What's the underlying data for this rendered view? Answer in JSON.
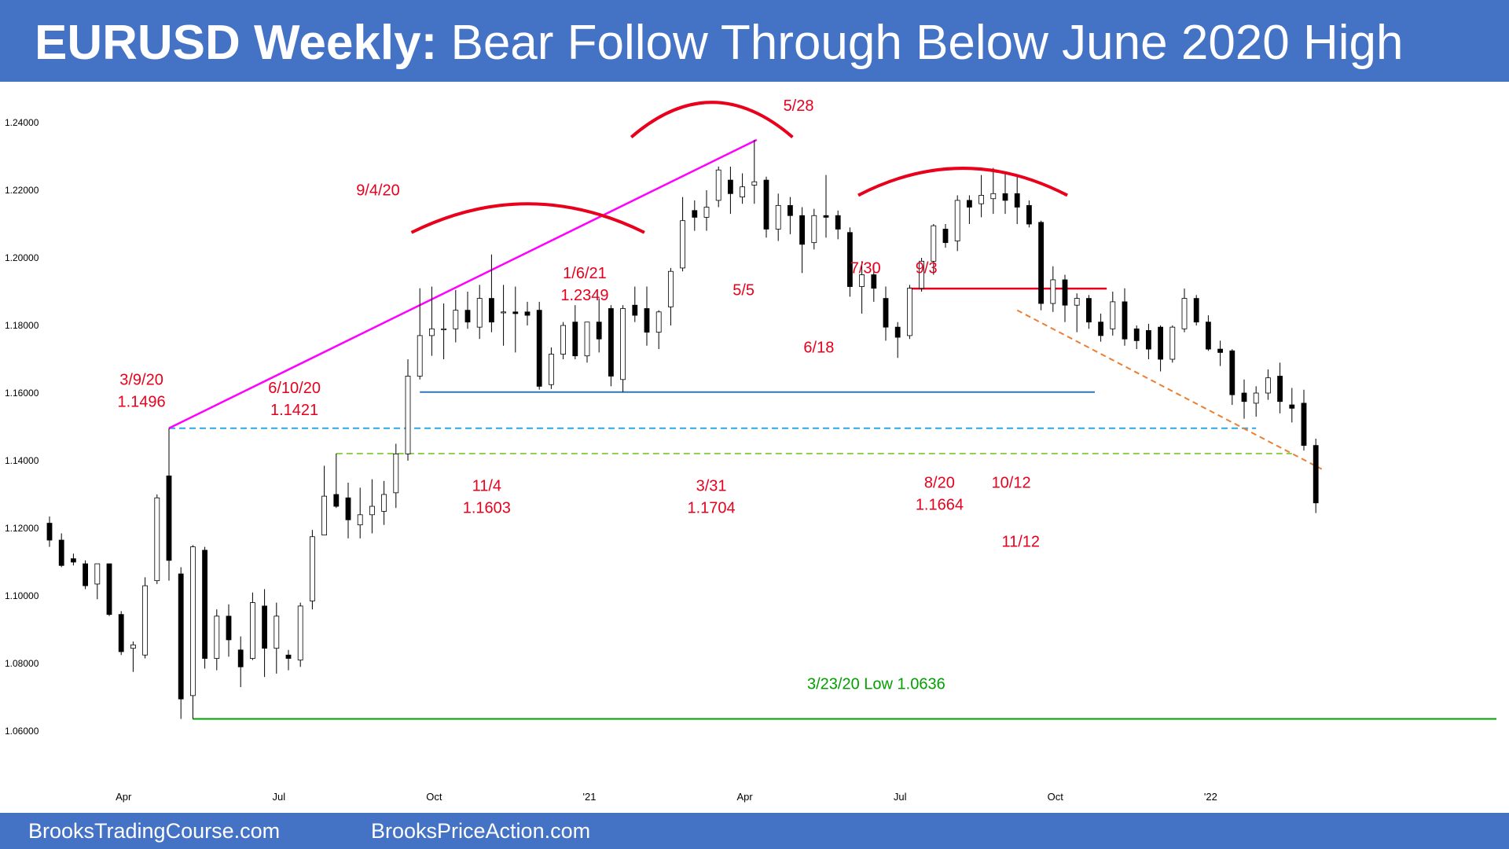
{
  "header": {
    "title_bold": "EURUSD Weekly:",
    "title_rest": "Bear Follow Through Below June 2020 High"
  },
  "footer": {
    "left": "BrooksTradingCourse.com",
    "right": "BrooksPriceAction.com"
  },
  "chart_data": {
    "type": "candlestick",
    "title": "EURUSD Weekly: Bear Follow Through Below June 2020 High",
    "timeframe": "weekly",
    "ylim": [
      1.052,
      1.245
    ],
    "yticks": [
      {
        "value": 1.24,
        "label": "1.24000"
      },
      {
        "value": 1.22,
        "label": "1.22000"
      },
      {
        "value": 1.2,
        "label": "1.20000"
      },
      {
        "value": 1.18,
        "label": "1.18000"
      },
      {
        "value": 1.16,
        "label": "1.16000"
      },
      {
        "value": 1.14,
        "label": "1.14000"
      },
      {
        "value": 1.12,
        "label": "1.12000"
      },
      {
        "value": 1.1,
        "label": "1.10000"
      },
      {
        "value": 1.08,
        "label": "1.08000"
      },
      {
        "value": 1.06,
        "label": "1.06000"
      }
    ],
    "xticks": [
      {
        "index": 6,
        "label": "Apr"
      },
      {
        "index": 19,
        "label": "Jul"
      },
      {
        "index": 32,
        "label": "Oct"
      },
      {
        "index": 45,
        "label": "'21"
      },
      {
        "index": 58,
        "label": "Apr"
      },
      {
        "index": 71,
        "label": "Jul"
      },
      {
        "index": 84,
        "label": "Oct"
      },
      {
        "index": 97,
        "label": "'22"
      }
    ],
    "grid": false,
    "candles": [
      {
        "o": 1.1215,
        "h": 1.1235,
        "l": 1.1145,
        "c": 1.1165
      },
      {
        "o": 1.1165,
        "h": 1.1185,
        "l": 1.1085,
        "c": 1.109
      },
      {
        "o": 1.111,
        "h": 1.1125,
        "l": 1.109,
        "c": 1.11
      },
      {
        "o": 1.1095,
        "h": 1.1105,
        "l": 1.102,
        "c": 1.103
      },
      {
        "o": 1.1035,
        "h": 1.1095,
        "l": 1.099,
        "c": 1.1095
      },
      {
        "o": 1.1095,
        "h": 1.1095,
        "l": 1.094,
        "c": 1.0945
      },
      {
        "o": 1.0945,
        "h": 1.0955,
        "l": 1.0825,
        "c": 1.0835
      },
      {
        "o": 1.0845,
        "h": 1.0865,
        "l": 1.0775,
        "c": 1.0855
      },
      {
        "o": 1.0825,
        "h": 1.1055,
        "l": 1.0815,
        "c": 1.103
      },
      {
        "o": 1.1045,
        "h": 1.13,
        "l": 1.1035,
        "c": 1.129
      },
      {
        "o": 1.1355,
        "h": 1.1496,
        "l": 1.1045,
        "c": 1.1105
      },
      {
        "o": 1.1065,
        "h": 1.1085,
        "l": 1.0636,
        "c": 1.0695
      },
      {
        "o": 1.0705,
        "h": 1.115,
        "l": 1.0636,
        "c": 1.1145
      },
      {
        "o": 1.1135,
        "h": 1.1145,
        "l": 1.0785,
        "c": 1.0815
      },
      {
        "o": 1.0815,
        "h": 1.096,
        "l": 1.078,
        "c": 1.094
      },
      {
        "o": 1.094,
        "h": 1.0975,
        "l": 1.082,
        "c": 1.087
      },
      {
        "o": 1.084,
        "h": 1.088,
        "l": 1.073,
        "c": 1.079
      },
      {
        "o": 1.0815,
        "h": 1.101,
        "l": 1.081,
        "c": 1.098
      },
      {
        "o": 1.097,
        "h": 1.102,
        "l": 1.076,
        "c": 1.0845
      },
      {
        "o": 1.0845,
        "h": 1.098,
        "l": 1.077,
        "c": 1.094
      },
      {
        "o": 1.0825,
        "h": 1.084,
        "l": 1.078,
        "c": 1.0815
      },
      {
        "o": 1.081,
        "h": 1.098,
        "l": 1.079,
        "c": 1.097
      },
      {
        "o": 1.0985,
        "h": 1.1195,
        "l": 1.096,
        "c": 1.1175
      },
      {
        "o": 1.118,
        "h": 1.1385,
        "l": 1.118,
        "c": 1.1295
      },
      {
        "o": 1.13,
        "h": 1.1421,
        "l": 1.126,
        "c": 1.1265
      },
      {
        "o": 1.129,
        "h": 1.1335,
        "l": 1.117,
        "c": 1.1225
      },
      {
        "o": 1.121,
        "h": 1.132,
        "l": 1.117,
        "c": 1.124
      },
      {
        "o": 1.124,
        "h": 1.1345,
        "l": 1.1185,
        "c": 1.1265
      },
      {
        "o": 1.125,
        "h": 1.134,
        "l": 1.121,
        "c": 1.13
      },
      {
        "o": 1.1305,
        "h": 1.145,
        "l": 1.126,
        "c": 1.142
      },
      {
        "o": 1.142,
        "h": 1.17,
        "l": 1.14,
        "c": 1.165
      },
      {
        "o": 1.165,
        "h": 1.191,
        "l": 1.164,
        "c": 1.177
      },
      {
        "o": 1.177,
        "h": 1.1915,
        "l": 1.171,
        "c": 1.179
      },
      {
        "o": 1.179,
        "h": 1.1865,
        "l": 1.17,
        "c": 1.179
      },
      {
        "o": 1.179,
        "h": 1.1905,
        "l": 1.175,
        "c": 1.1845
      },
      {
        "o": 1.1845,
        "h": 1.19,
        "l": 1.179,
        "c": 1.181
      },
      {
        "o": 1.1795,
        "h": 1.192,
        "l": 1.176,
        "c": 1.188
      },
      {
        "o": 1.188,
        "h": 1.201,
        "l": 1.178,
        "c": 1.181
      },
      {
        "o": 1.184,
        "h": 1.192,
        "l": 1.174,
        "c": 1.184
      },
      {
        "o": 1.184,
        "h": 1.1915,
        "l": 1.172,
        "c": 1.1835
      },
      {
        "o": 1.184,
        "h": 1.187,
        "l": 1.18,
        "c": 1.183
      },
      {
        "o": 1.1845,
        "h": 1.187,
        "l": 1.161,
        "c": 1.162
      },
      {
        "o": 1.1625,
        "h": 1.1735,
        "l": 1.1612,
        "c": 1.1715
      },
      {
        "o": 1.1715,
        "h": 1.181,
        "l": 1.17,
        "c": 1.18
      },
      {
        "o": 1.181,
        "h": 1.186,
        "l": 1.17,
        "c": 1.171
      },
      {
        "o": 1.171,
        "h": 1.181,
        "l": 1.169,
        "c": 1.181
      },
      {
        "o": 1.181,
        "h": 1.188,
        "l": 1.172,
        "c": 1.176
      },
      {
        "o": 1.185,
        "h": 1.186,
        "l": 1.162,
        "c": 1.165
      },
      {
        "o": 1.164,
        "h": 1.186,
        "l": 1.1603,
        "c": 1.185
      },
      {
        "o": 1.186,
        "h": 1.1915,
        "l": 1.181,
        "c": 1.183
      },
      {
        "o": 1.185,
        "h": 1.1915,
        "l": 1.174,
        "c": 1.178
      },
      {
        "o": 1.178,
        "h": 1.1845,
        "l": 1.173,
        "c": 1.184
      },
      {
        "o": 1.1855,
        "h": 1.197,
        "l": 1.18,
        "c": 1.196
      },
      {
        "o": 1.197,
        "h": 1.218,
        "l": 1.196,
        "c": 1.211
      },
      {
        "o": 1.214,
        "h": 1.217,
        "l": 1.208,
        "c": 1.212
      },
      {
        "o": 1.212,
        "h": 1.22,
        "l": 1.208,
        "c": 1.215
      },
      {
        "o": 1.217,
        "h": 1.227,
        "l": 1.215,
        "c": 1.226
      },
      {
        "o": 1.223,
        "h": 1.227,
        "l": 1.213,
        "c": 1.219
      },
      {
        "o": 1.218,
        "h": 1.225,
        "l": 1.216,
        "c": 1.221
      },
      {
        "o": 1.2215,
        "h": 1.2349,
        "l": 1.216,
        "c": 1.2225
      },
      {
        "o": 1.223,
        "h": 1.224,
        "l": 1.206,
        "c": 1.2085
      },
      {
        "o": 1.2085,
        "h": 1.219,
        "l": 1.205,
        "c": 1.2155
      },
      {
        "o": 1.2155,
        "h": 1.218,
        "l": 1.207,
        "c": 1.2125
      },
      {
        "o": 1.2125,
        "h": 1.215,
        "l": 1.1955,
        "c": 1.204
      },
      {
        "o": 1.2045,
        "h": 1.2145,
        "l": 1.2025,
        "c": 1.2125
      },
      {
        "o": 1.2125,
        "h": 1.2245,
        "l": 1.206,
        "c": 1.212
      },
      {
        "o": 1.2125,
        "h": 1.214,
        "l": 1.2055,
        "c": 1.2085
      },
      {
        "o": 1.2075,
        "h": 1.209,
        "l": 1.1885,
        "c": 1.1915
      },
      {
        "o": 1.1915,
        "h": 1.199,
        "l": 1.1835,
        "c": 1.195
      },
      {
        "o": 1.195,
        "h": 1.198,
        "l": 1.187,
        "c": 1.191
      },
      {
        "o": 1.188,
        "h": 1.1915,
        "l": 1.1755,
        "c": 1.1795
      },
      {
        "o": 1.1795,
        "h": 1.181,
        "l": 1.1704,
        "c": 1.1765
      },
      {
        "o": 1.177,
        "h": 1.192,
        "l": 1.176,
        "c": 1.191
      },
      {
        "o": 1.191,
        "h": 1.2,
        "l": 1.19,
        "c": 1.199
      },
      {
        "o": 1.199,
        "h": 1.21,
        "l": 1.195,
        "c": 1.2095
      },
      {
        "o": 1.2085,
        "h": 1.21,
        "l": 1.203,
        "c": 1.2045
      },
      {
        "o": 1.205,
        "h": 1.2185,
        "l": 1.202,
        "c": 1.217
      },
      {
        "o": 1.217,
        "h": 1.2185,
        "l": 1.21,
        "c": 1.215
      },
      {
        "o": 1.216,
        "h": 1.2245,
        "l": 1.212,
        "c": 1.2185
      },
      {
        "o": 1.2175,
        "h": 1.2266,
        "l": 1.213,
        "c": 1.219
      },
      {
        "o": 1.219,
        "h": 1.2255,
        "l": 1.213,
        "c": 1.217
      },
      {
        "o": 1.219,
        "h": 1.224,
        "l": 1.21,
        "c": 1.215
      },
      {
        "o": 1.2155,
        "h": 1.217,
        "l": 1.209,
        "c": 1.21
      },
      {
        "o": 1.2105,
        "h": 1.211,
        "l": 1.1845,
        "c": 1.1865
      },
      {
        "o": 1.1865,
        "h": 1.1975,
        "l": 1.184,
        "c": 1.1935
      },
      {
        "o": 1.1935,
        "h": 1.195,
        "l": 1.181,
        "c": 1.186
      },
      {
        "o": 1.186,
        "h": 1.1895,
        "l": 1.178,
        "c": 1.188
      },
      {
        "o": 1.188,
        "h": 1.189,
        "l": 1.179,
        "c": 1.181
      },
      {
        "o": 1.181,
        "h": 1.1835,
        "l": 1.1752,
        "c": 1.177
      },
      {
        "o": 1.179,
        "h": 1.19,
        "l": 1.177,
        "c": 1.187
      },
      {
        "o": 1.187,
        "h": 1.191,
        "l": 1.174,
        "c": 1.176
      },
      {
        "o": 1.179,
        "h": 1.18,
        "l": 1.173,
        "c": 1.1755
      },
      {
        "o": 1.1785,
        "h": 1.1805,
        "l": 1.17,
        "c": 1.173
      },
      {
        "o": 1.1795,
        "h": 1.18,
        "l": 1.1664,
        "c": 1.17
      },
      {
        "o": 1.17,
        "h": 1.18,
        "l": 1.169,
        "c": 1.1795
      },
      {
        "o": 1.179,
        "h": 1.1909,
        "l": 1.178,
        "c": 1.188
      },
      {
        "o": 1.188,
        "h": 1.189,
        "l": 1.18,
        "c": 1.181
      },
      {
        "o": 1.181,
        "h": 1.183,
        "l": 1.1725,
        "c": 1.173
      },
      {
        "o": 1.173,
        "h": 1.1755,
        "l": 1.168,
        "c": 1.172
      },
      {
        "o": 1.1725,
        "h": 1.173,
        "l": 1.1565,
        "c": 1.1595
      },
      {
        "o": 1.16,
        "h": 1.164,
        "l": 1.1524,
        "c": 1.1575
      },
      {
        "o": 1.157,
        "h": 1.162,
        "l": 1.153,
        "c": 1.16
      },
      {
        "o": 1.16,
        "h": 1.167,
        "l": 1.158,
        "c": 1.1645
      },
      {
        "o": 1.165,
        "h": 1.169,
        "l": 1.154,
        "c": 1.1575
      },
      {
        "o": 1.1565,
        "h": 1.1615,
        "l": 1.1513,
        "c": 1.1555
      },
      {
        "o": 1.157,
        "h": 1.161,
        "l": 1.143,
        "c": 1.1445
      },
      {
        "o": 1.1445,
        "h": 1.1465,
        "l": 1.1245,
        "c": 1.1275
      }
    ],
    "levels": [
      {
        "name": "3/9/20 high",
        "value": 1.1496,
        "color": "#2aa7e8",
        "style": "dashed"
      },
      {
        "name": "6/10/20 high",
        "value": 1.1421,
        "color": "#92d050",
        "style": "dashed"
      },
      {
        "name": "11/4 low",
        "value": 1.1603,
        "color": "#2e75b6",
        "style": "solid"
      },
      {
        "name": "7/30 - 9/3 double top",
        "value": 1.1909,
        "color": "#e8001c",
        "style": "solid"
      },
      {
        "name": "3/23/20 low",
        "value": 1.0636,
        "color": "#00a000",
        "style": "solid"
      }
    ],
    "annotations": [
      {
        "id": "a_3_9_20",
        "lines": [
          "3/9/20",
          "1.1496"
        ]
      },
      {
        "id": "a_6_10_20",
        "lines": [
          "6/10/20",
          "1.1421"
        ]
      },
      {
        "id": "a_9_4_20",
        "lines": [
          "9/4/20"
        ]
      },
      {
        "id": "a_11_4",
        "lines": [
          "11/4",
          "1.1603"
        ]
      },
      {
        "id": "a_1_6_21",
        "lines": [
          "1/6/21",
          "1.2349"
        ]
      },
      {
        "id": "a_3_31",
        "lines": [
          "3/31",
          "1.1704"
        ]
      },
      {
        "id": "a_5_5",
        "lines": [
          "5/5"
        ]
      },
      {
        "id": "a_5_28",
        "lines": [
          "5/28"
        ]
      },
      {
        "id": "a_6_18",
        "lines": [
          "6/18"
        ]
      },
      {
        "id": "a_7_30",
        "lines": [
          "7/30"
        ]
      },
      {
        "id": "a_9_3",
        "lines": [
          "9/3"
        ]
      },
      {
        "id": "a_8_20",
        "lines": [
          "8/20",
          "1.1664"
        ]
      },
      {
        "id": "a_10_12",
        "lines": [
          "10/12"
        ]
      },
      {
        "id": "a_11_12",
        "lines": [
          "11/12"
        ]
      },
      {
        "id": "a_low",
        "lines": [
          "3/23/20 Low 1.0636"
        ]
      }
    ]
  },
  "colors": {
    "banner": "#4472c4",
    "annotation_red": "#e8001c",
    "trendline_magenta": "#ff00ff",
    "trendline_orange": "#ed7d31",
    "low_green": "#00a000",
    "bull_body": "#ffffff",
    "bear_body": "#000000"
  }
}
